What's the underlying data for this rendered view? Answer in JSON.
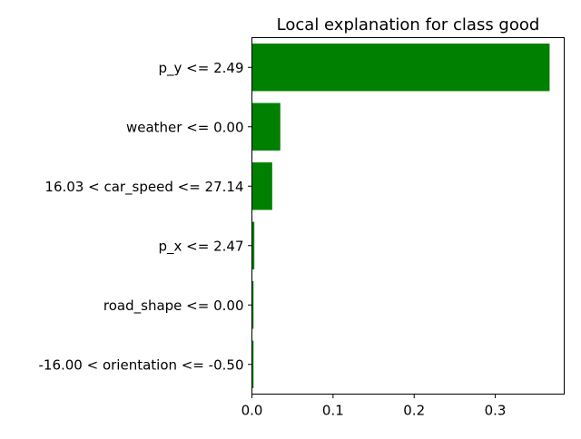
{
  "chart_data": {
    "type": "bar",
    "orientation": "horizontal",
    "title": "Local explanation for class good",
    "xlabel": "",
    "ylabel": "",
    "categories": [
      "p_y <= 2.49",
      "weather <= 0.00",
      "16.03 < car_speed <= 27.14",
      "p_x <= 2.47",
      "road_shape <= 0.00",
      "-16.00 < orientation <= -0.50"
    ],
    "values": [
      0.367,
      0.035,
      0.025,
      0.003,
      0.002,
      0.002
    ],
    "xlim": [
      0,
      0.385
    ],
    "xticks": [
      0.0,
      0.1,
      0.2,
      0.3
    ],
    "xtick_labels": [
      "0.0",
      "0.1",
      "0.2",
      "0.3"
    ],
    "grid": false,
    "bar_color": "#008000"
  }
}
